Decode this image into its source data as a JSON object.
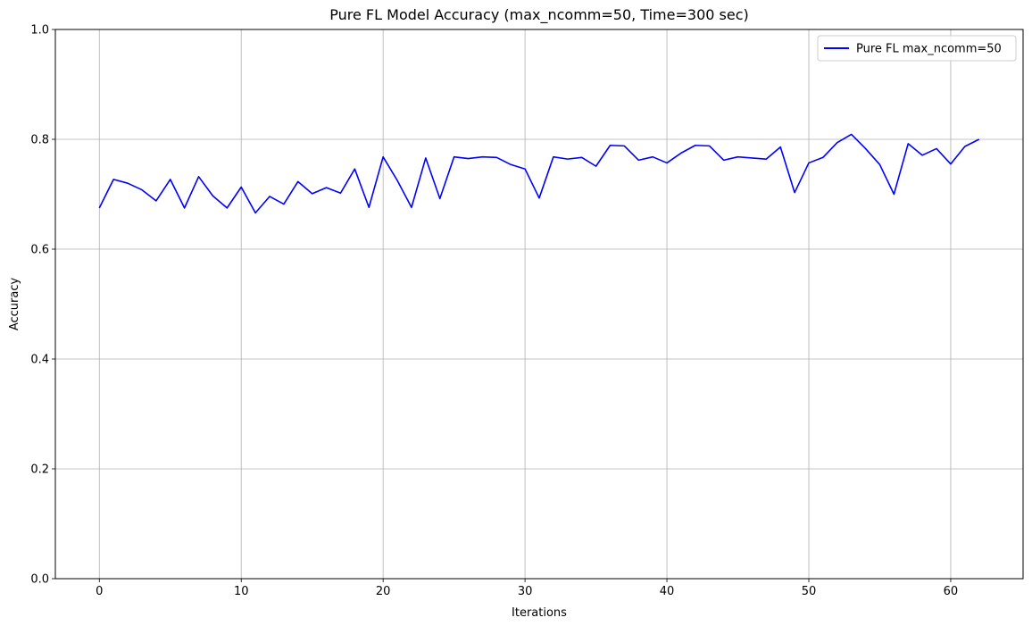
{
  "chart_data": {
    "type": "line",
    "title": "Pure FL Model Accuracy (max_ncomm=50, Time=300 sec)",
    "xlabel": "Iterations",
    "ylabel": "Accuracy",
    "xlim": [
      -3.1,
      65.1
    ],
    "ylim": [
      0,
      1
    ],
    "xticks": [
      0,
      10,
      20,
      30,
      40,
      50,
      60
    ],
    "xtick_labels": [
      "0",
      "10",
      "20",
      "30",
      "40",
      "50",
      "60"
    ],
    "yticks": [
      0,
      0.2,
      0.4,
      0.6,
      0.8,
      1.0
    ],
    "ytick_labels": [
      "0.0",
      "0.2",
      "0.4",
      "0.6",
      "0.8",
      "1.0"
    ],
    "grid": true,
    "legend_position": "top-right",
    "series": [
      {
        "name": "Pure FL max_ncomm=50",
        "color": "#0000ff",
        "x": [
          0,
          1,
          2,
          3,
          4,
          5,
          6,
          7,
          8,
          9,
          10,
          11,
          12,
          13,
          14,
          15,
          16,
          17,
          18,
          19,
          20,
          21,
          22,
          23,
          24,
          25,
          26,
          27,
          28,
          29,
          30,
          31,
          32,
          33,
          34,
          35,
          36,
          37,
          38,
          39,
          40,
          41,
          42,
          43,
          44,
          45,
          46,
          47,
          48,
          49,
          50,
          51,
          52,
          53,
          54,
          55,
          56,
          57,
          58,
          59,
          60,
          61,
          62
        ],
        "values": [
          0.675,
          0.727,
          0.72,
          0.708,
          0.688,
          0.727,
          0.675,
          0.732,
          0.697,
          0.675,
          0.713,
          0.666,
          0.696,
          0.682,
          0.723,
          0.701,
          0.712,
          0.702,
          0.746,
          0.676,
          0.768,
          0.725,
          0.676,
          0.766,
          0.692,
          0.768,
          0.765,
          0.768,
          0.767,
          0.754,
          0.746,
          0.693,
          0.768,
          0.764,
          0.767,
          0.751,
          0.789,
          0.788,
          0.762,
          0.768,
          0.757,
          0.775,
          0.789,
          0.788,
          0.762,
          0.768,
          0.766,
          0.764,
          0.786,
          0.703,
          0.757,
          0.767,
          0.794,
          0.809,
          0.783,
          0.754,
          0.7,
          0.792,
          0.771,
          0.783,
          0.755,
          0.787,
          0.8
        ]
      }
    ]
  }
}
